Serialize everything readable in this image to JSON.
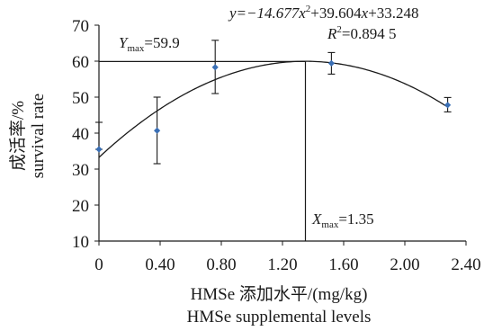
{
  "chart_data": {
    "type": "scatter",
    "ylabel_cn": "成活率/%",
    "ylabel_en": "survival rate",
    "xlabel_cn": "HMSe 添加水平/(mg/kg)",
    "xlabel_en": "HMSe supplemental levels",
    "xlim": [
      0,
      2.4
    ],
    "ylim": [
      10,
      70
    ],
    "x_ticks": [
      0,
      0.4,
      0.8,
      1.2,
      1.6,
      2.0,
      2.4
    ],
    "x_tick_labels": [
      "0",
      "0.40",
      "0.80",
      "1.20",
      "1.60",
      "2.00",
      "2.40"
    ],
    "y_ticks": [
      10,
      20,
      30,
      40,
      50,
      60,
      70
    ],
    "y_tick_labels": [
      "10",
      "20",
      "30",
      "40",
      "50",
      "60",
      "70"
    ],
    "points": [
      {
        "x": 0.0,
        "y": 35.5,
        "err_low": 35.5,
        "err_high": 43.0
      },
      {
        "x": 0.38,
        "y": 40.7,
        "err_low": 31.5,
        "err_high": 50.0
      },
      {
        "x": 0.76,
        "y": 58.3,
        "err_low": 51.0,
        "err_high": 65.8
      },
      {
        "x": 1.52,
        "y": 59.4,
        "err_low": 56.4,
        "err_high": 62.4
      },
      {
        "x": 2.28,
        "y": 47.8,
        "err_low": 45.9,
        "err_high": 49.9
      }
    ],
    "fit": {
      "a": -14.677,
      "b": 39.604,
      "c": 33.248
    },
    "equation": {
      "text_a": "y=−14.677",
      "text_b": "x",
      "text_b_sup": "2",
      "text_c": "+39.604",
      "text_d": "x",
      "text_e": "+33.248"
    },
    "r2": {
      "label": "R",
      "sup": "2",
      "value": "=0.894 5"
    },
    "ymax": {
      "label": "Y",
      "sub": "max",
      "value": "=59.9",
      "y": 59.9
    },
    "xmax": {
      "label": "X",
      "sub": "max",
      "value": "=1.35",
      "x": 1.35
    },
    "colors": {
      "marker": "#3a6fb5",
      "line": "#1a1a1a"
    }
  }
}
